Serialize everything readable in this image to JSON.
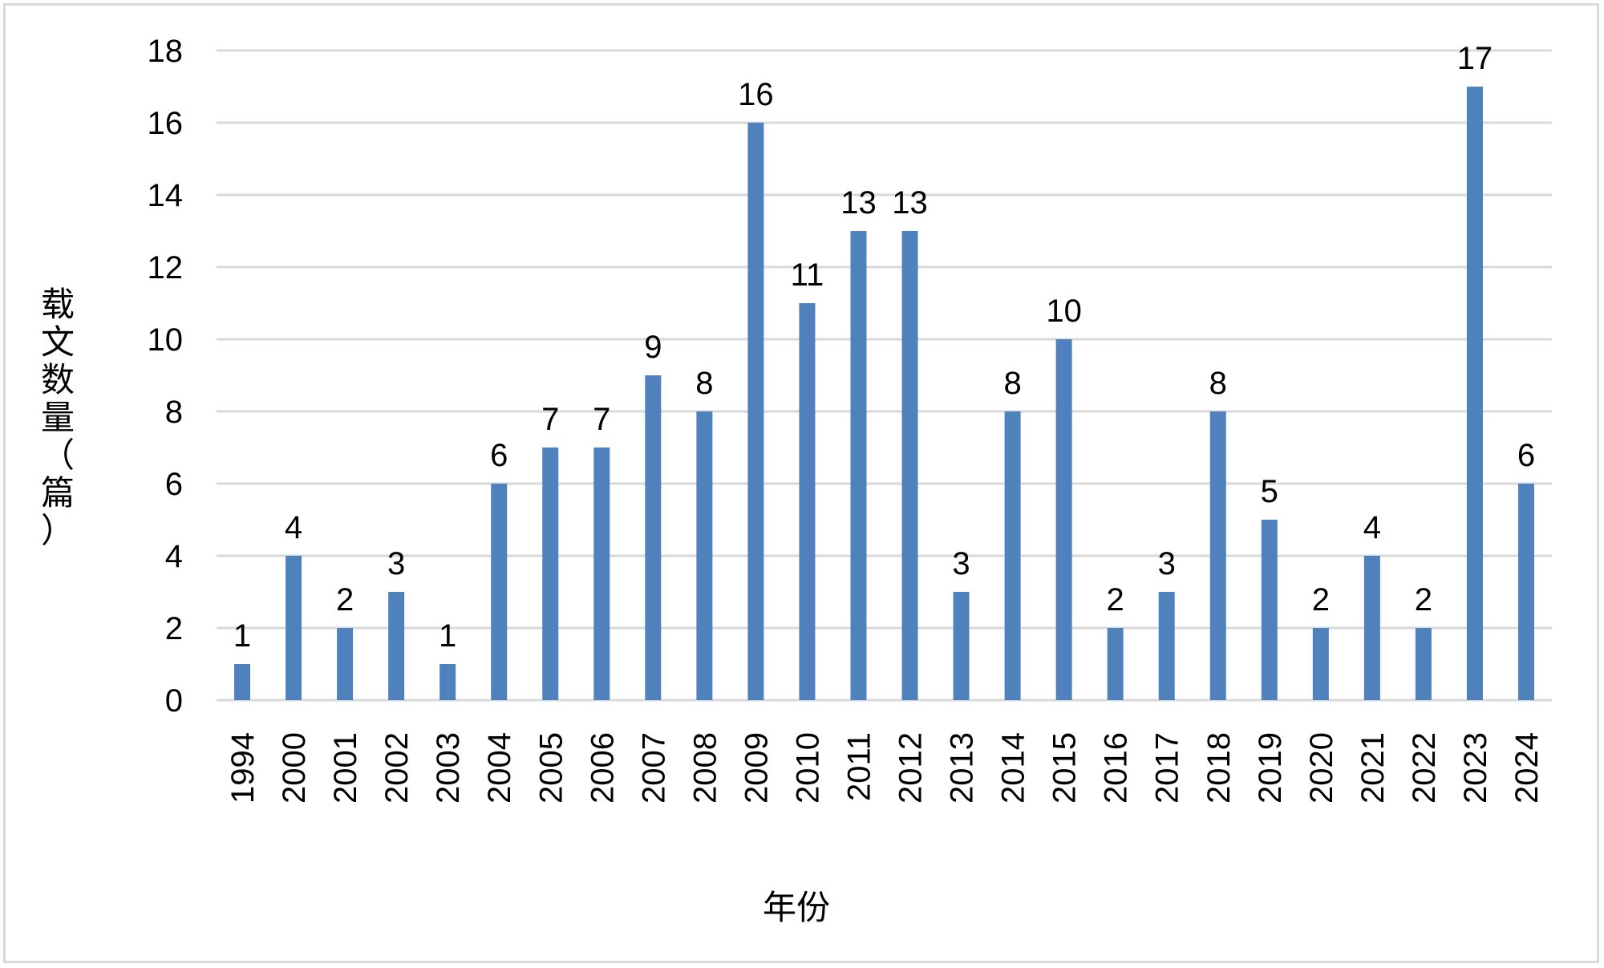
{
  "chart_data": {
    "type": "bar",
    "title": "",
    "xlabel": "年份",
    "ylabel": "载文数量（篇）",
    "categories": [
      "1994",
      "2000",
      "2001",
      "2002",
      "2003",
      "2004",
      "2005",
      "2006",
      "2007",
      "2008",
      "2009",
      "2010",
      "2011",
      "2012",
      "2013",
      "2014",
      "2015",
      "2016",
      "2017",
      "2018",
      "2019",
      "2020",
      "2021",
      "2022",
      "2023",
      "2024"
    ],
    "values": [
      1,
      4,
      2,
      3,
      1,
      6,
      7,
      7,
      9,
      8,
      16,
      11,
      13,
      13,
      3,
      8,
      10,
      2,
      3,
      8,
      5,
      2,
      4,
      2,
      17,
      6
    ],
    "ylim": [
      0,
      18
    ],
    "yticks": [
      0,
      2,
      4,
      6,
      8,
      10,
      12,
      14,
      16,
      18
    ],
    "grid": true,
    "data_labels": true,
    "bar_color": "#4f81bd",
    "grid_color": "#d9d9d9"
  }
}
